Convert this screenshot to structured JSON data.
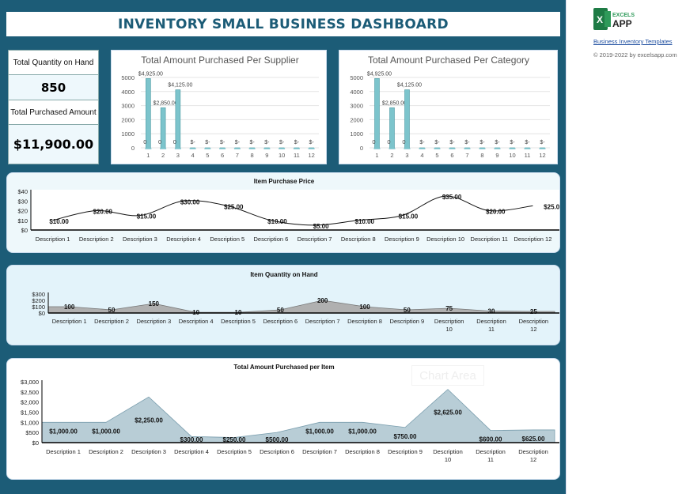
{
  "title": "INVENTORY SMALL BUSINESS DASHBOARD",
  "kpi": {
    "qty_label": "Total Quantity on Hand",
    "qty_value": "850",
    "amount_label": "Total Purchased Amount",
    "amount_value": "$11,900.00"
  },
  "sidebar": {
    "brand_top": "EXCELS",
    "brand_bottom": "APP",
    "link": "Business Inventory Templates",
    "copyright": "© 2019-2022 by excelsapp.com"
  },
  "tooltip": "Chart Area",
  "colors": {
    "background": "#1c5c77",
    "bar": "#7cc4cc",
    "area_qty": "#b0b0b0",
    "area_amount": "#b8cdd6",
    "title": "#1c5c77"
  },
  "chart_data": [
    {
      "id": "supplier",
      "type": "bar",
      "title": "Total Amount Purchased Per Supplier",
      "categories": [
        "1",
        "2",
        "3",
        "4",
        "5",
        "6",
        "7",
        "8",
        "9",
        "10",
        "11",
        "12"
      ],
      "values": [
        4925,
        2850,
        4125,
        0,
        0,
        0,
        0,
        0,
        0,
        0,
        0,
        0
      ],
      "data_labels": [
        "$4,925.00",
        "$2,850.00",
        "$4,125.00",
        "$-",
        "$-",
        "$-",
        "$-",
        "$-",
        "$-",
        "$-",
        "$-",
        "$-"
      ],
      "secondary_labels": [
        "0",
        "0",
        "0"
      ],
      "ylim": [
        0,
        5000
      ],
      "yticks": [
        "0",
        "1000",
        "2000",
        "3000",
        "4000",
        "5000"
      ],
      "grid": true
    },
    {
      "id": "category",
      "type": "bar",
      "title": "Total Amount Purchased Per Category",
      "categories": [
        "1",
        "2",
        "3",
        "4",
        "5",
        "6",
        "7",
        "8",
        "9",
        "10",
        "11",
        "12"
      ],
      "values": [
        4925,
        2850,
        4125,
        0,
        0,
        0,
        0,
        0,
        0,
        0,
        0,
        0
      ],
      "data_labels": [
        "$4,925.00",
        "$2,850.00",
        "$4,125.00",
        "$-",
        "$-",
        "$-",
        "$-",
        "$-",
        "$-",
        "$-",
        "$-",
        "$-"
      ],
      "secondary_labels": [
        "0",
        "0",
        "0"
      ],
      "ylim": [
        0,
        5000
      ],
      "yticks": [
        "0",
        "1000",
        "2000",
        "3000",
        "4000",
        "5000"
      ],
      "grid": true
    },
    {
      "id": "price",
      "type": "line",
      "title": "Item Purchase Price",
      "categories": [
        "Description 1",
        "Description 2",
        "Description 3",
        "Description 4",
        "Description 5",
        "Description 6",
        "Description 7",
        "Description 8",
        "Description 9",
        "Description 10",
        "Description 11",
        "Description 12"
      ],
      "values": [
        10,
        20,
        15,
        30,
        25,
        10,
        5,
        10,
        15,
        35,
        20,
        25
      ],
      "data_labels": [
        "$10.00",
        "$20.00",
        "$15.00",
        "$30.00",
        "$25.00",
        "$10.00",
        "$5.00",
        "$10.00",
        "$15.00",
        "$35.00",
        "$20.00",
        "$25.00"
      ],
      "ylim": [
        0,
        40
      ],
      "yticks": [
        "$0",
        "$10",
        "$20",
        "$30",
        "$40"
      ],
      "grid": false
    },
    {
      "id": "qty",
      "type": "area",
      "title": "Item Quantity on Hand",
      "categories": [
        "Description 1",
        "Description 2",
        "Description 3",
        "Description 4",
        "Description 5",
        "Description 6",
        "Description 7",
        "Description 8",
        "Description 9",
        "Description 10",
        "Description 11",
        "Description 12"
      ],
      "values": [
        100,
        50,
        150,
        10,
        10,
        50,
        200,
        100,
        50,
        75,
        30,
        25
      ],
      "data_labels": [
        "100",
        "50",
        "150",
        "10",
        "10",
        "50",
        "200",
        "100",
        "50",
        "75",
        "30",
        "25"
      ],
      "ylim": [
        0,
        300
      ],
      "yticks": [
        "$0",
        "$100",
        "$200",
        "$300"
      ],
      "grid": false
    },
    {
      "id": "amount",
      "type": "area",
      "title": "Total Amount Purchased per Item",
      "categories": [
        "Description 1",
        "Description 2",
        "Description 3",
        "Description 4",
        "Description 5",
        "Description 6",
        "Description 7",
        "Description 8",
        "Description 9",
        "Description 10",
        "Description 11",
        "Description 12"
      ],
      "values": [
        1000,
        1000,
        2250,
        300,
        250,
        500,
        1000,
        1000,
        750,
        2625,
        600,
        625
      ],
      "data_labels": [
        "$1,000.00",
        "$1,000.00",
        "$2,250.00",
        "$300.00",
        "$250.00",
        "$500.00",
        "$1,000.00",
        "$1,000.00",
        "$750.00",
        "$2,625.00",
        "$600.00",
        "$625.00"
      ],
      "ylim": [
        0,
        3000
      ],
      "yticks": [
        "$0",
        "$500",
        "$1,000",
        "$1,500",
        "$2,000",
        "$2,500",
        "$3,000"
      ],
      "grid": false
    }
  ]
}
